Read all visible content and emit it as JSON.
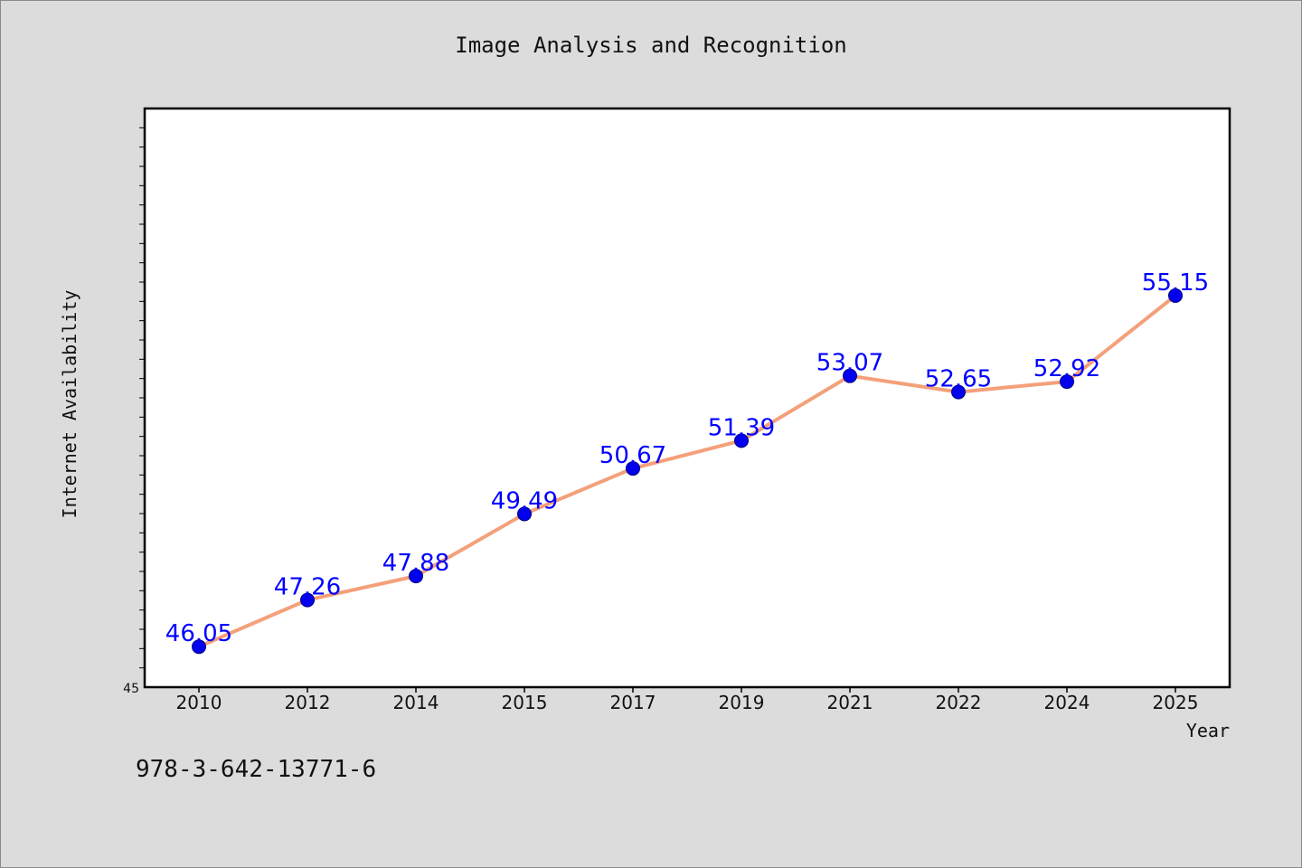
{
  "chart_data": {
    "type": "line",
    "title": "Image Analysis and Recognition",
    "xlabel": "Year",
    "ylabel": "Internet Availability",
    "categories": [
      "2010",
      "2012",
      "2014",
      "2015",
      "2017",
      "2019",
      "2021",
      "2022",
      "2024",
      "2025"
    ],
    "values": [
      46.05,
      47.26,
      47.88,
      49.49,
      50.67,
      51.39,
      53.07,
      52.65,
      52.92,
      55.15
    ],
    "data_labels": [
      "46.05",
      "47.26",
      "47.88",
      "49.49",
      "50.67",
      "51.39",
      "53.07",
      "52.65",
      "52.92",
      "55.15"
    ],
    "ylim": [
      45,
      60
    ],
    "y_tick_labels": [
      "45"
    ],
    "grid": false,
    "line_color": "#f4a07a",
    "marker_color": "#0000ee",
    "label_color": "#0000ff"
  },
  "footer": {
    "isbn": "978-3-642-13771-6"
  }
}
